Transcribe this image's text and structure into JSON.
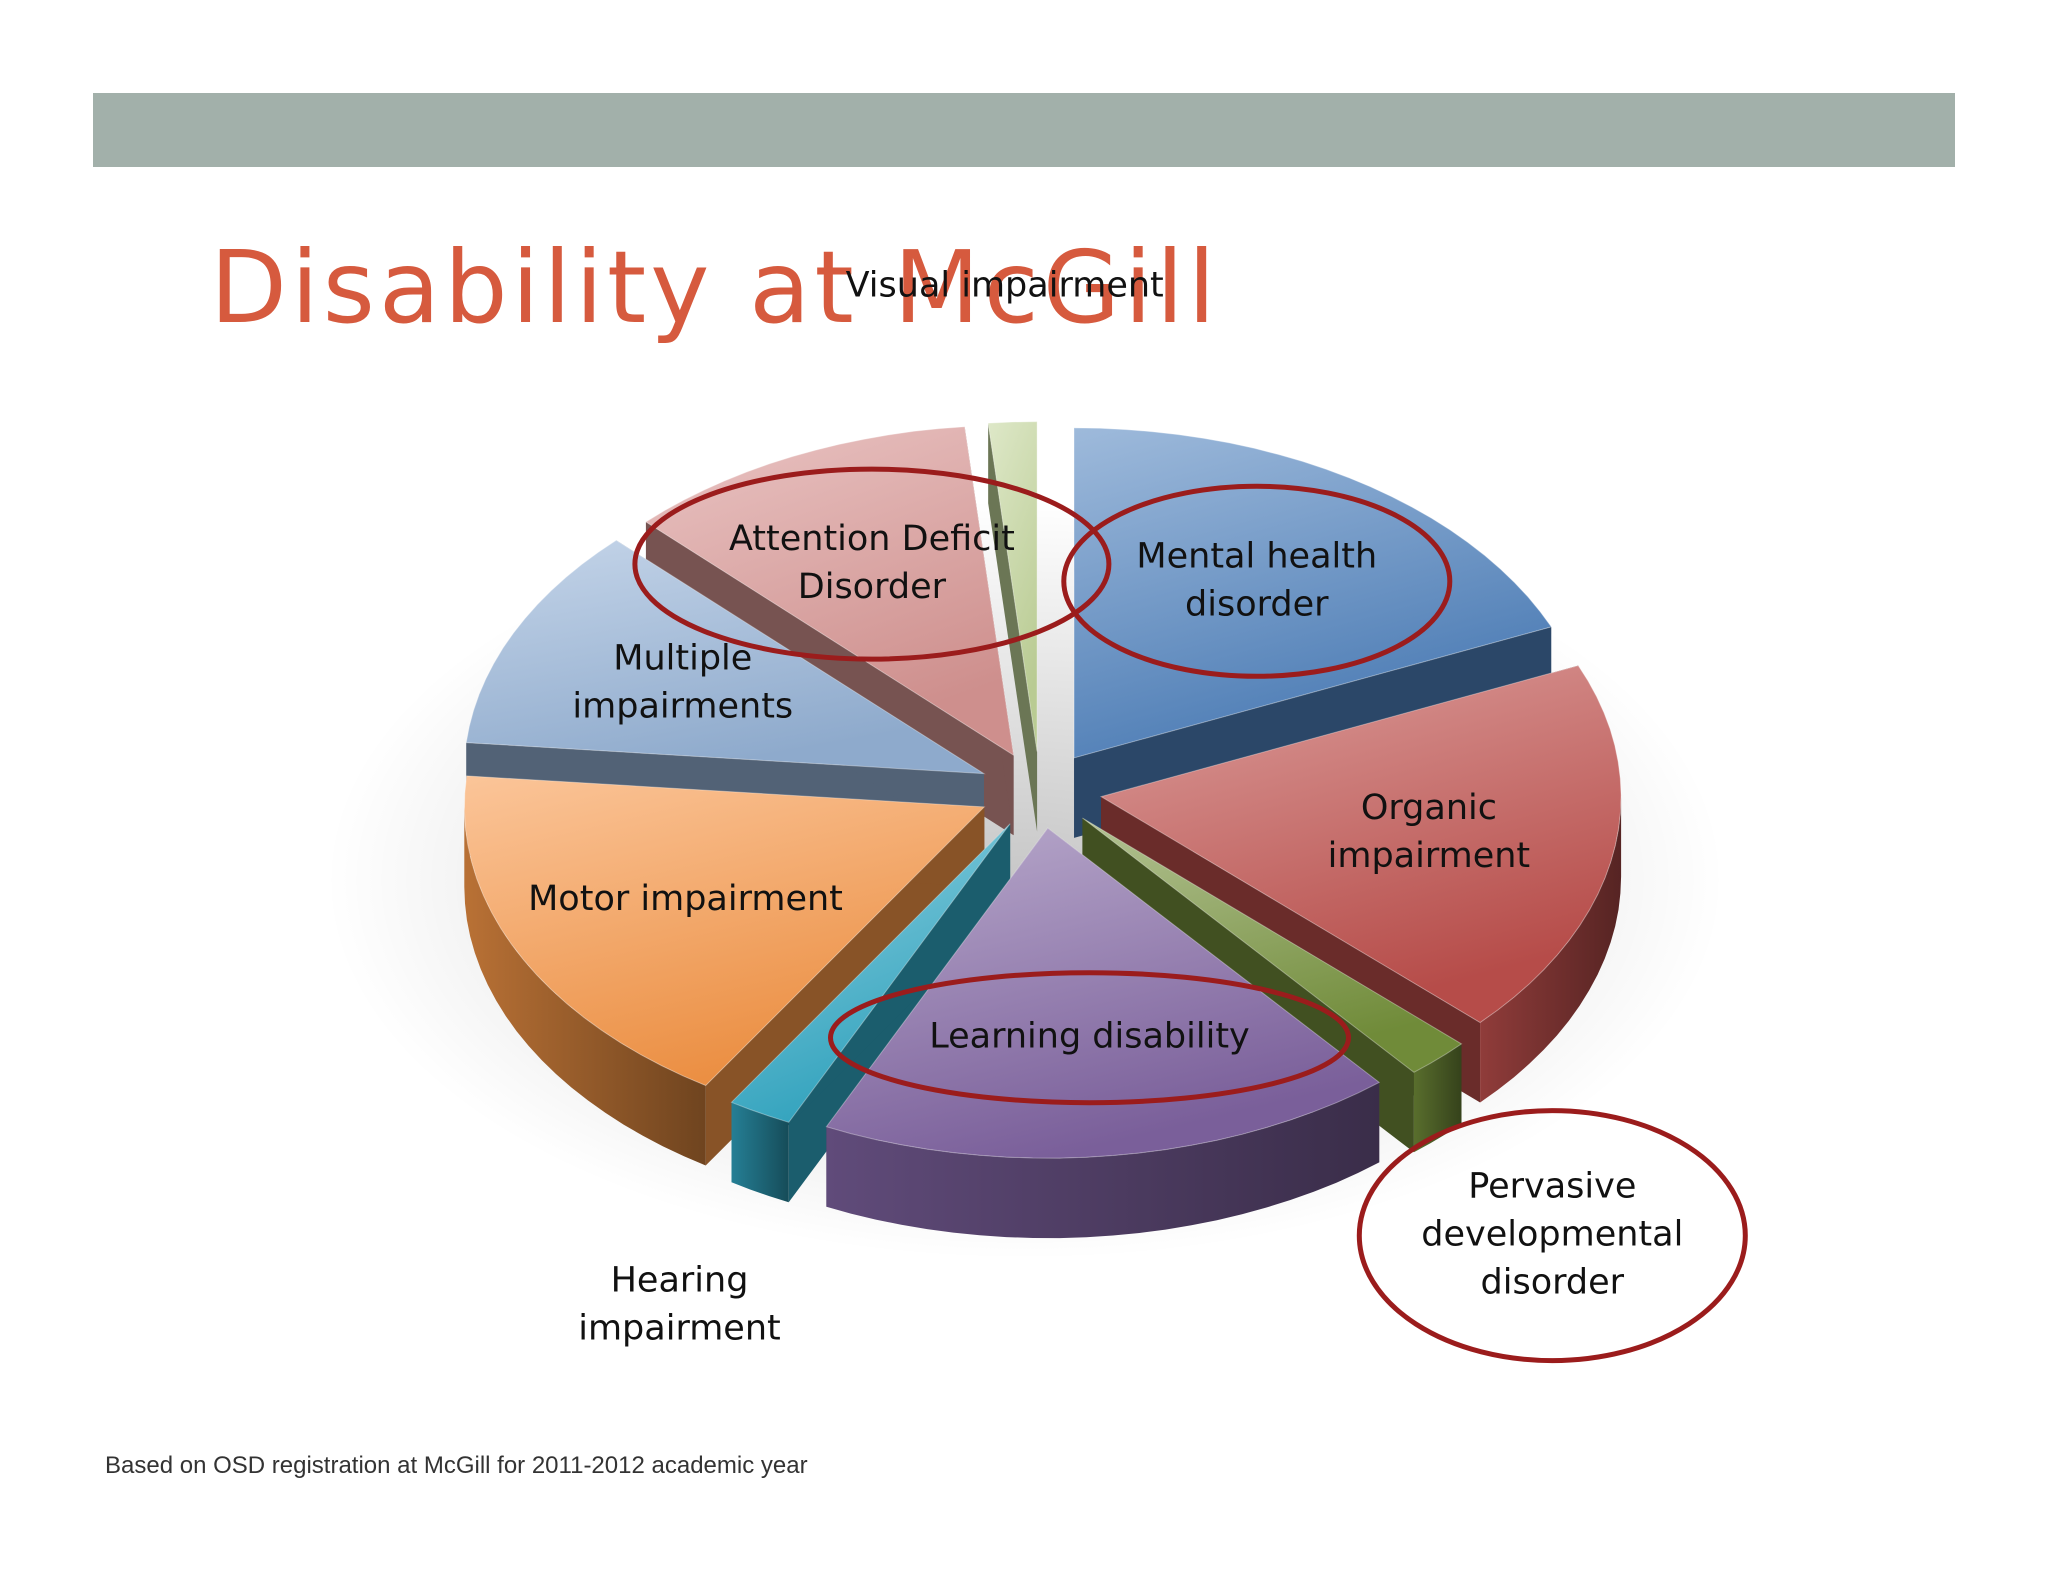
{
  "slide": {
    "title": "Disability at McGill",
    "footnote": "Based on OSD registration at McGill for 2011-2012 academic year"
  },
  "chart_data": {
    "type": "pie",
    "title": "",
    "style": "3D exploded pie",
    "categories": [
      "Mental health disorder",
      "Organic impairment",
      "Pervasive developmental disorder",
      "Learning disability",
      "Hearing impairment",
      "Motor impairment",
      "Multiple impairments",
      "Attention Deficit Disorder",
      "Visual impairment"
    ],
    "values": [
      18.5,
      18.5,
      2.0,
      18.0,
      2.0,
      17.5,
      11.0,
      11.0,
      1.5
    ],
    "label_lines": [
      [
        "Mental health",
        "disorder"
      ],
      [
        "Organic",
        "impairment"
      ],
      [
        "Pervasive",
        "developmental",
        "disorder"
      ],
      [
        "Learning disability"
      ],
      [
        "Hearing",
        "impairment"
      ],
      [
        "Motor impairment"
      ],
      [
        "Multiple",
        "impairments"
      ],
      [
        "Attention Deficit",
        "Disorder"
      ],
      [
        "Visual impairment"
      ]
    ],
    "highlighted": [
      "Mental health disorder",
      "Learning disability",
      "Pervasive developmental disorder",
      "Attention Deficit Disorder"
    ],
    "colors": {
      "Mental health disorder": "#4f81bd",
      "Organic impairment": "#c0504d",
      "Pervasive developmental disorder": "#76923c",
      "Learning disability": "#8064a2",
      "Hearing impairment": "#31a9c6",
      "Motor impairment": "#f79646",
      "Multiple impairments": "#95b3d7",
      "Attention Deficit Disorder": "#d99694",
      "Visual impairment": "#c3d69b"
    },
    "highlight_color": "#9b1c1c"
  }
}
